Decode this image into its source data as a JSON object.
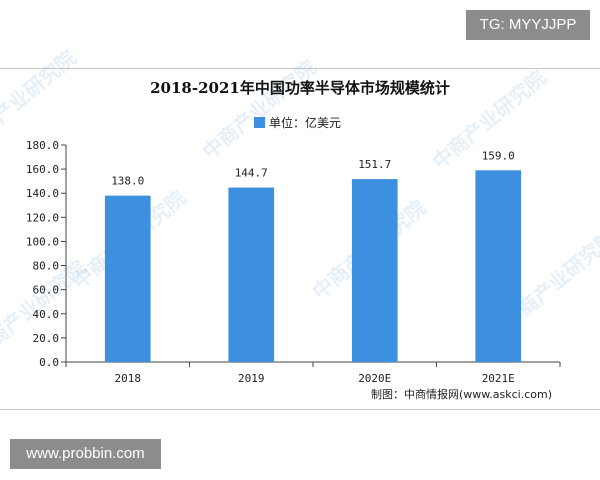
{
  "badges": {
    "tg": "TG: MYYJJPP",
    "site": "www.probbin.com"
  },
  "watermark": {
    "text": "中商产业研究院"
  },
  "source": {
    "label": "制图：中商情报网",
    "url": "(www.askci.com)"
  },
  "colors": {
    "bar": "#3d8fe0",
    "axis": "#444444",
    "watermark": "#5b9bd5"
  },
  "chart_data": {
    "type": "bar",
    "title": "2018-2021年中国功率半导体市场规模统计",
    "legend_position": "top-center",
    "grid": false,
    "categories": [
      "2018",
      "2019",
      "2020E",
      "2021E"
    ],
    "series": [
      {
        "name": "单位：亿美元",
        "values": [
          138.0,
          144.7,
          151.7,
          159.0
        ],
        "labels": [
          "138.0",
          "144.7",
          "151.7",
          "159.0"
        ]
      }
    ],
    "xlabel": "",
    "ylabel": "",
    "ylim": [
      0,
      180
    ],
    "ytick_labels": [
      "0.0",
      "20.0",
      "40.0",
      "60.0",
      "80.0",
      "100.0",
      "120.0",
      "140.0",
      "160.0",
      "180.0"
    ]
  }
}
